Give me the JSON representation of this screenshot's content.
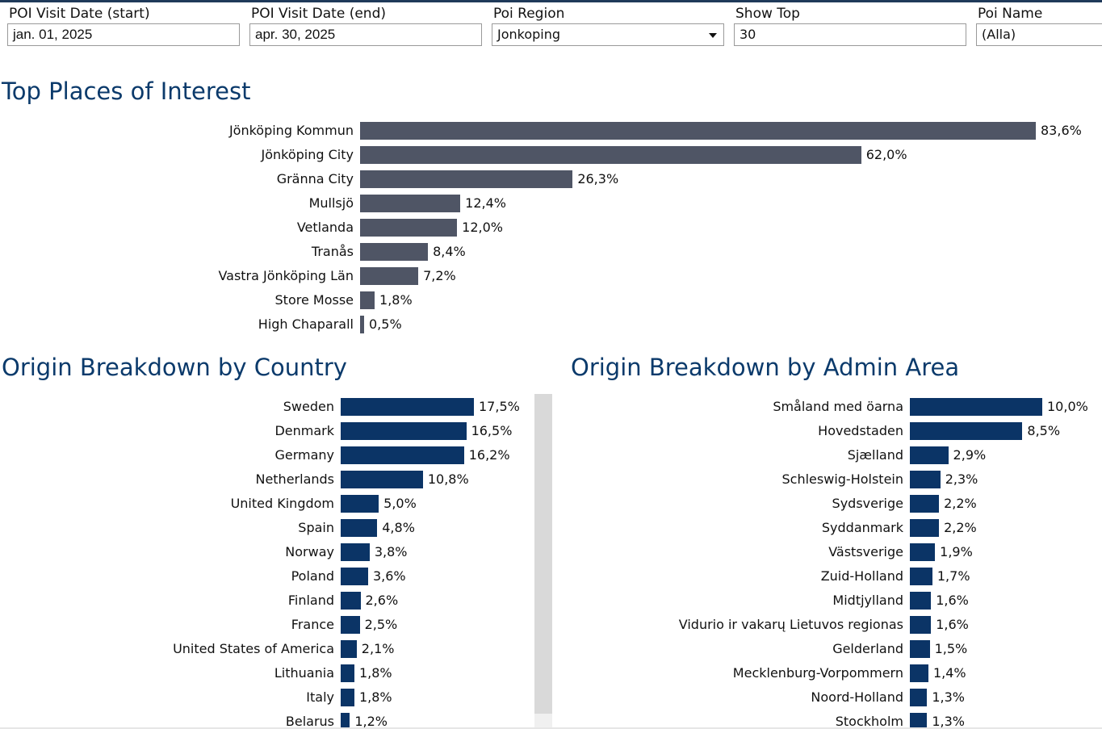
{
  "filters": [
    {
      "label": "POI Visit Date (start)",
      "value": "jan. 01, 2025",
      "type": "date"
    },
    {
      "label": "POI Visit Date (end)",
      "value": "apr. 30, 2025",
      "type": "date"
    },
    {
      "label": "Poi Region",
      "value": "Jonkoping",
      "type": "select"
    },
    {
      "label": "Show Top",
      "value": "30",
      "type": "text"
    },
    {
      "label": "Poi Name",
      "value": "(Alla)",
      "type": "text"
    }
  ],
  "sections": {
    "top_places": "Top Places of Interest",
    "by_country": "Origin Breakdown by Country",
    "by_admin": "Origin Breakdown by Admin Area"
  },
  "colors": {
    "top_places_bar": "#4f5565",
    "origin_bar": "#0b3466",
    "title": "#0b3a6b"
  },
  "chart_data": [
    {
      "type": "bar",
      "orientation": "horizontal",
      "title": "Top Places of Interest",
      "categories": [
        "Jönköping Kommun",
        "Jönköping City",
        "Gränna City",
        "Mullsjö",
        "Vetlanda",
        "Tranås",
        "Vastra Jönköping Län",
        "Store Mosse",
        "High Chaparall"
      ],
      "values": [
        83.6,
        62.0,
        26.3,
        12.4,
        12.0,
        8.4,
        7.2,
        1.8,
        0.5
      ],
      "value_labels": [
        "83,6%",
        "62,0%",
        "26,3%",
        "12,4%",
        "12,0%",
        "8,4%",
        "7,2%",
        "1,8%",
        "0,5%"
      ]
    },
    {
      "type": "bar",
      "orientation": "horizontal",
      "title": "Origin Breakdown by Country",
      "categories": [
        "Sweden",
        "Denmark",
        "Germany",
        "Netherlands",
        "United Kingdom",
        "Spain",
        "Norway",
        "Poland",
        "Finland",
        "France",
        "United States of America",
        "Lithuania",
        "Italy",
        "Belarus"
      ],
      "values": [
        17.5,
        16.5,
        16.2,
        10.8,
        5.0,
        4.8,
        3.8,
        3.6,
        2.6,
        2.5,
        2.1,
        1.8,
        1.8,
        1.2
      ],
      "value_labels": [
        "17,5%",
        "16,5%",
        "16,2%",
        "10,8%",
        "5,0%",
        "4,8%",
        "3,8%",
        "3,6%",
        "2,6%",
        "2,5%",
        "2,1%",
        "1,8%",
        "1,8%",
        "1,2%"
      ]
    },
    {
      "type": "bar",
      "orientation": "horizontal",
      "title": "Origin Breakdown by Admin Area",
      "categories": [
        "Småland med öarna",
        "Hovedstaden",
        "Sjælland",
        "Schleswig-Holstein",
        "Sydsverige",
        "Syddanmark",
        "Västsverige",
        "Zuid-Holland",
        "Midtjylland",
        "Vidurio ir vakarų Lietuvos regionas",
        "Gelderland",
        "Mecklenburg-Vorpommern",
        "Noord-Holland",
        "Stockholm"
      ],
      "values": [
        10.0,
        8.5,
        2.9,
        2.3,
        2.2,
        2.2,
        1.9,
        1.7,
        1.6,
        1.6,
        1.5,
        1.4,
        1.3,
        1.3
      ],
      "value_labels": [
        "10,0%",
        "8,5%",
        "2,9%",
        "2,3%",
        "2,2%",
        "2,2%",
        "1,9%",
        "1,7%",
        "1,6%",
        "1,6%",
        "1,5%",
        "1,4%",
        "1,3%",
        "1,3%"
      ]
    }
  ]
}
